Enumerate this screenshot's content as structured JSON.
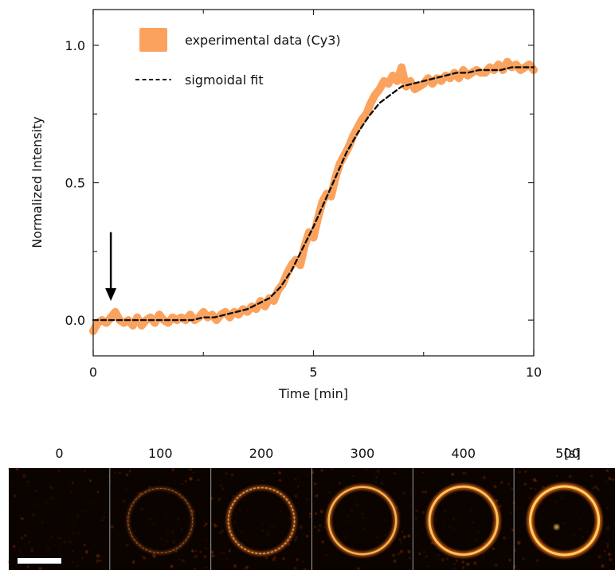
{
  "chart_data": {
    "type": "line",
    "xlabel": "Time [min]",
    "ylabel": "Normalized Intensity",
    "xlim": [
      0,
      10
    ],
    "ylim": [
      -0.13,
      1.13
    ],
    "xticks": [
      0,
      5,
      10
    ],
    "yticks": [
      0.0,
      0.5,
      1.0
    ],
    "xtick_labels": [
      "0",
      "5",
      "10"
    ],
    "ytick_labels": [
      "0.0",
      "0.5",
      "1.0"
    ],
    "grid": false,
    "legend_position": "top-left",
    "series": [
      {
        "name": "experimental data (Cy3)",
        "color": "#fba35e",
        "style": "thick-solid",
        "x": [
          0.0,
          0.1,
          0.2,
          0.3,
          0.4,
          0.5,
          0.6,
          0.7,
          0.8,
          0.9,
          1.0,
          1.1,
          1.2,
          1.3,
          1.4,
          1.5,
          1.6,
          1.7,
          1.8,
          1.9,
          2.0,
          2.1,
          2.2,
          2.3,
          2.4,
          2.5,
          2.6,
          2.7,
          2.8,
          2.9,
          3.0,
          3.1,
          3.2,
          3.3,
          3.4,
          3.5,
          3.6,
          3.7,
          3.8,
          3.9,
          4.0,
          4.1,
          4.2,
          4.3,
          4.4,
          4.5,
          4.6,
          4.7,
          4.8,
          4.9,
          5.0,
          5.1,
          5.2,
          5.3,
          5.4,
          5.5,
          5.6,
          5.7,
          5.8,
          5.9,
          6.0,
          6.1,
          6.2,
          6.3,
          6.4,
          6.5,
          6.6,
          6.7,
          6.8,
          6.9,
          7.0,
          7.1,
          7.2,
          7.3,
          7.4,
          7.5,
          7.6,
          7.7,
          7.8,
          7.9,
          8.0,
          8.1,
          8.2,
          8.3,
          8.4,
          8.5,
          8.6,
          8.7,
          8.8,
          8.9,
          9.0,
          9.1,
          9.2,
          9.3,
          9.4,
          9.5,
          9.6,
          9.7,
          9.8,
          9.9,
          10.0
        ],
        "y": [
          -0.04,
          -0.01,
          0.0,
          -0.01,
          0.01,
          0.03,
          0.0,
          -0.01,
          0.0,
          -0.02,
          0.01,
          -0.02,
          0.0,
          0.01,
          -0.01,
          0.02,
          0.0,
          -0.01,
          0.01,
          0.0,
          0.01,
          0.0,
          0.02,
          0.0,
          0.01,
          0.03,
          0.01,
          0.02,
          0.0,
          0.02,
          0.03,
          0.01,
          0.03,
          0.02,
          0.04,
          0.03,
          0.05,
          0.04,
          0.07,
          0.05,
          0.08,
          0.07,
          0.11,
          0.13,
          0.17,
          0.2,
          0.22,
          0.2,
          0.27,
          0.32,
          0.3,
          0.37,
          0.43,
          0.46,
          0.45,
          0.52,
          0.57,
          0.6,
          0.63,
          0.67,
          0.7,
          0.73,
          0.75,
          0.79,
          0.82,
          0.84,
          0.87,
          0.86,
          0.89,
          0.87,
          0.92,
          0.85,
          0.87,
          0.84,
          0.85,
          0.86,
          0.88,
          0.86,
          0.88,
          0.87,
          0.89,
          0.88,
          0.9,
          0.88,
          0.91,
          0.89,
          0.9,
          0.91,
          0.9,
          0.9,
          0.92,
          0.91,
          0.93,
          0.91,
          0.94,
          0.92,
          0.93,
          0.91,
          0.92,
          0.93,
          0.91
        ]
      },
      {
        "name": "sigmoidal fit",
        "color": "#111111",
        "style": "dashed",
        "x": [
          0.0,
          0.25,
          0.5,
          0.75,
          1.0,
          1.25,
          1.5,
          1.75,
          2.0,
          2.25,
          2.5,
          2.75,
          3.0,
          3.25,
          3.5,
          3.75,
          4.0,
          4.25,
          4.5,
          4.75,
          5.0,
          5.25,
          5.5,
          5.75,
          6.0,
          6.25,
          6.5,
          6.75,
          7.0,
          7.25,
          7.5,
          7.75,
          8.0,
          8.25,
          8.5,
          8.75,
          9.0,
          9.25,
          9.5,
          9.75,
          10.0
        ],
        "y": [
          0.0,
          0.0,
          0.0,
          0.0,
          0.0,
          0.0,
          0.0,
          0.0,
          0.0,
          0.0,
          0.01,
          0.01,
          0.02,
          0.03,
          0.04,
          0.06,
          0.08,
          0.12,
          0.18,
          0.26,
          0.34,
          0.43,
          0.52,
          0.61,
          0.68,
          0.74,
          0.79,
          0.82,
          0.85,
          0.86,
          0.87,
          0.88,
          0.89,
          0.9,
          0.9,
          0.91,
          0.91,
          0.91,
          0.92,
          0.92,
          0.92
        ]
      }
    ],
    "annotations": [
      {
        "type": "arrow",
        "direction": "down",
        "x": 0.4,
        "y": 0.32,
        "y_end": 0.07
      }
    ]
  },
  "image_strip": {
    "unit_label": "[s]",
    "frames": [
      {
        "label": "0",
        "ring_brightness": 0.0
      },
      {
        "label": "100",
        "ring_brightness": 0.18
      },
      {
        "label": "200",
        "ring_brightness": 0.5
      },
      {
        "label": "300",
        "ring_brightness": 0.75
      },
      {
        "label": "400",
        "ring_brightness": 0.9
      },
      {
        "label": "500",
        "ring_brightness": 1.0
      }
    ],
    "colors": {
      "background": "#0a0300",
      "ring_mid": "#e0631a",
      "ring_hot": "#ffd25a",
      "divider": "#9a9a9a",
      "scale_bar": "#ffffff"
    }
  }
}
